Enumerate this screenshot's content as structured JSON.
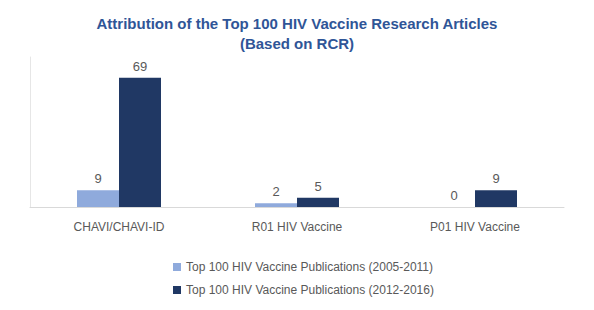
{
  "chart_data": {
    "type": "bar",
    "title": "Attribution of the Top 100 HIV Vaccine Research Articles\n(Based on RCR)",
    "categories": [
      "CHAVI/CHAVI-ID",
      "R01 HIV Vaccine",
      "P01 HIV Vaccine"
    ],
    "series": [
      {
        "name": "Top 100 HIV Vaccine Publications (2005-2011)",
        "color": "#8faadc",
        "values": [
          9,
          2,
          0
        ]
      },
      {
        "name": "Top 100 HIV Vaccine Publications (2012-2016)",
        "color": "#203864",
        "values": [
          69,
          5,
          9
        ]
      }
    ],
    "ylim": [
      0,
      80
    ],
    "grid": false,
    "legend": "bottom",
    "data_labels": true,
    "tick_labels": "x"
  }
}
